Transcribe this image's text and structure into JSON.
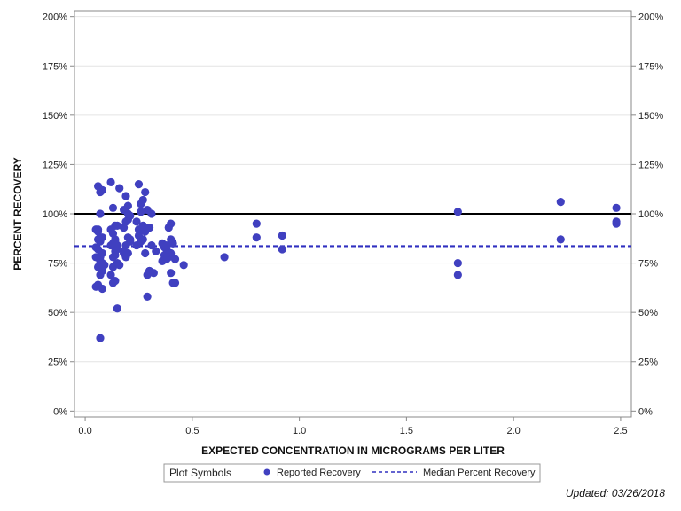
{
  "chart_data": {
    "type": "scatter",
    "xlabel": "EXPECTED CONCENTRATION IN MICROGRAMS PER LITER",
    "ylabel": "PERCENT RECOVERY",
    "xlim": [
      -0.05,
      2.55
    ],
    "ylim": [
      -0.03,
      2.03
    ],
    "x_ticks": [
      0,
      0.5,
      1,
      1.5,
      2,
      2.5
    ],
    "x_tick_labels": [
      "0.0",
      "0.5",
      "1.0",
      "1.5",
      "2.0",
      "2.5"
    ],
    "y_ticks": [
      0,
      0.25,
      0.5,
      0.75,
      1,
      1.25,
      1.5,
      1.75,
      2
    ],
    "y_tick_labels": [
      "0%",
      "25%",
      "50%",
      "75%",
      "100%",
      "125%",
      "150%",
      "175%",
      "200%"
    ],
    "reference_line": 1.0,
    "median": 0.836,
    "colors": {
      "points": "#4040c0",
      "median": "#3030c0",
      "reference": "#000000",
      "grid": "#e4e4e4"
    },
    "series": [
      {
        "name": "Reported Recovery",
        "x": [
          0.05,
          0.06,
          0.05,
          0.07,
          0.06,
          0.08,
          0.07,
          0.06,
          0.05,
          0.07,
          0.08,
          0.06,
          0.07,
          0.05,
          0.08,
          0.06,
          0.07,
          0.08,
          0.06,
          0.07,
          0.09,
          0.07,
          0.08,
          0.06,
          0.07,
          0.08,
          0.12,
          0.13,
          0.12,
          0.14,
          0.13,
          0.15,
          0.14,
          0.13,
          0.15,
          0.14,
          0.13,
          0.12,
          0.15,
          0.14,
          0.16,
          0.13,
          0.15,
          0.14,
          0.12,
          0.16,
          0.14,
          0.13,
          0.15,
          0.19,
          0.2,
          0.18,
          0.21,
          0.2,
          0.19,
          0.18,
          0.2,
          0.21,
          0.19,
          0.18,
          0.2,
          0.19,
          0.21,
          0.18,
          0.2,
          0.25,
          0.26,
          0.24,
          0.27,
          0.25,
          0.28,
          0.26,
          0.27,
          0.25,
          0.24,
          0.26,
          0.28,
          0.29,
          0.27,
          0.28,
          0.3,
          0.29,
          0.31,
          0.3,
          0.32,
          0.31,
          0.33,
          0.3,
          0.29,
          0.36,
          0.37,
          0.38,
          0.37,
          0.36,
          0.38,
          0.39,
          0.4,
          0.39,
          0.38,
          0.4,
          0.41,
          0.4,
          0.42,
          0.41,
          0.42,
          0.38,
          0.4,
          0.46,
          0.65,
          0.8,
          0.8,
          0.92,
          0.92,
          1.74,
          1.74,
          1.74,
          2.22,
          2.22,
          2.48,
          2.48,
          2.48
        ],
        "y": [
          0.92,
          0.91,
          0.83,
          1.11,
          1.14,
          1.12,
          0.86,
          0.92,
          0.78,
          0.74,
          0.8,
          0.82,
          0.76,
          0.63,
          0.75,
          0.64,
          0.69,
          0.71,
          0.73,
          0.78,
          0.74,
          1.0,
          0.88,
          0.87,
          0.37,
          0.62,
          1.16,
          1.03,
          0.92,
          0.94,
          0.85,
          0.84,
          0.81,
          0.78,
          0.82,
          0.79,
          0.73,
          0.69,
          0.75,
          0.66,
          0.74,
          0.65,
          0.52,
          0.87,
          0.84,
          1.13,
          0.86,
          0.9,
          0.94,
          1.09,
          1.04,
          1.02,
          0.99,
          0.97,
          0.96,
          0.93,
          0.88,
          0.87,
          0.84,
          0.81,
          0.8,
          0.78,
          0.86,
          0.8,
          1.0,
          1.15,
          1.01,
          0.96,
          0.94,
          0.92,
          1.11,
          1.05,
          1.07,
          0.89,
          0.84,
          0.86,
          0.91,
          1.02,
          0.87,
          0.8,
          0.93,
          0.69,
          1.0,
          0.71,
          0.7,
          0.84,
          0.81,
          0.71,
          0.58,
          0.85,
          0.83,
          0.82,
          0.79,
          0.76,
          0.77,
          0.78,
          0.95,
          0.93,
          0.84,
          0.8,
          0.85,
          0.7,
          0.77,
          0.65,
          0.65,
          0.8,
          0.87,
          0.74,
          0.78,
          0.95,
          0.88,
          0.89,
          0.82,
          1.01,
          0.75,
          0.69,
          1.06,
          0.87,
          1.03,
          0.96,
          0.95
        ]
      },
      {
        "name": "Median Percent Recovery",
        "value": 0.836
      }
    ]
  },
  "legend": {
    "title": "Plot Symbols",
    "items": [
      {
        "label": "Reported Recovery"
      },
      {
        "label": "Median Percent Recovery"
      }
    ]
  },
  "footer": {
    "updated": "Updated: 03/26/2018"
  }
}
